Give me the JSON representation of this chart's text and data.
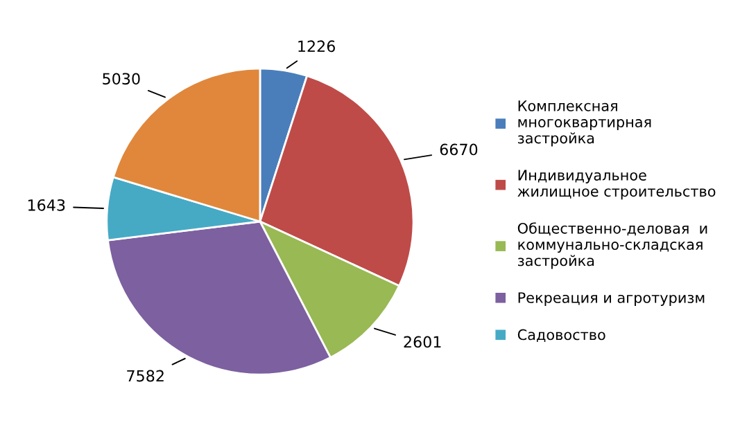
{
  "chart_data": {
    "type": "pie",
    "categories": [
      "Комплексная\nмногоквартирная\nзастройка",
      "Индивидуальное\nжилищное строительство",
      "Общественно-деловая  и\nкоммунально-складская\nзастройка",
      "Рекреация и агротуризм",
      "Садовоство",
      null
    ],
    "values": [
      1226,
      6670,
      2601,
      7582,
      1643,
      5030
    ],
    "colors": [
      "#4a7ebb",
      "#be4b48",
      "#98b954",
      "#7d60a0",
      "#46aac5",
      "#e0873b"
    ],
    "data_labels": true,
    "legend": "right"
  }
}
